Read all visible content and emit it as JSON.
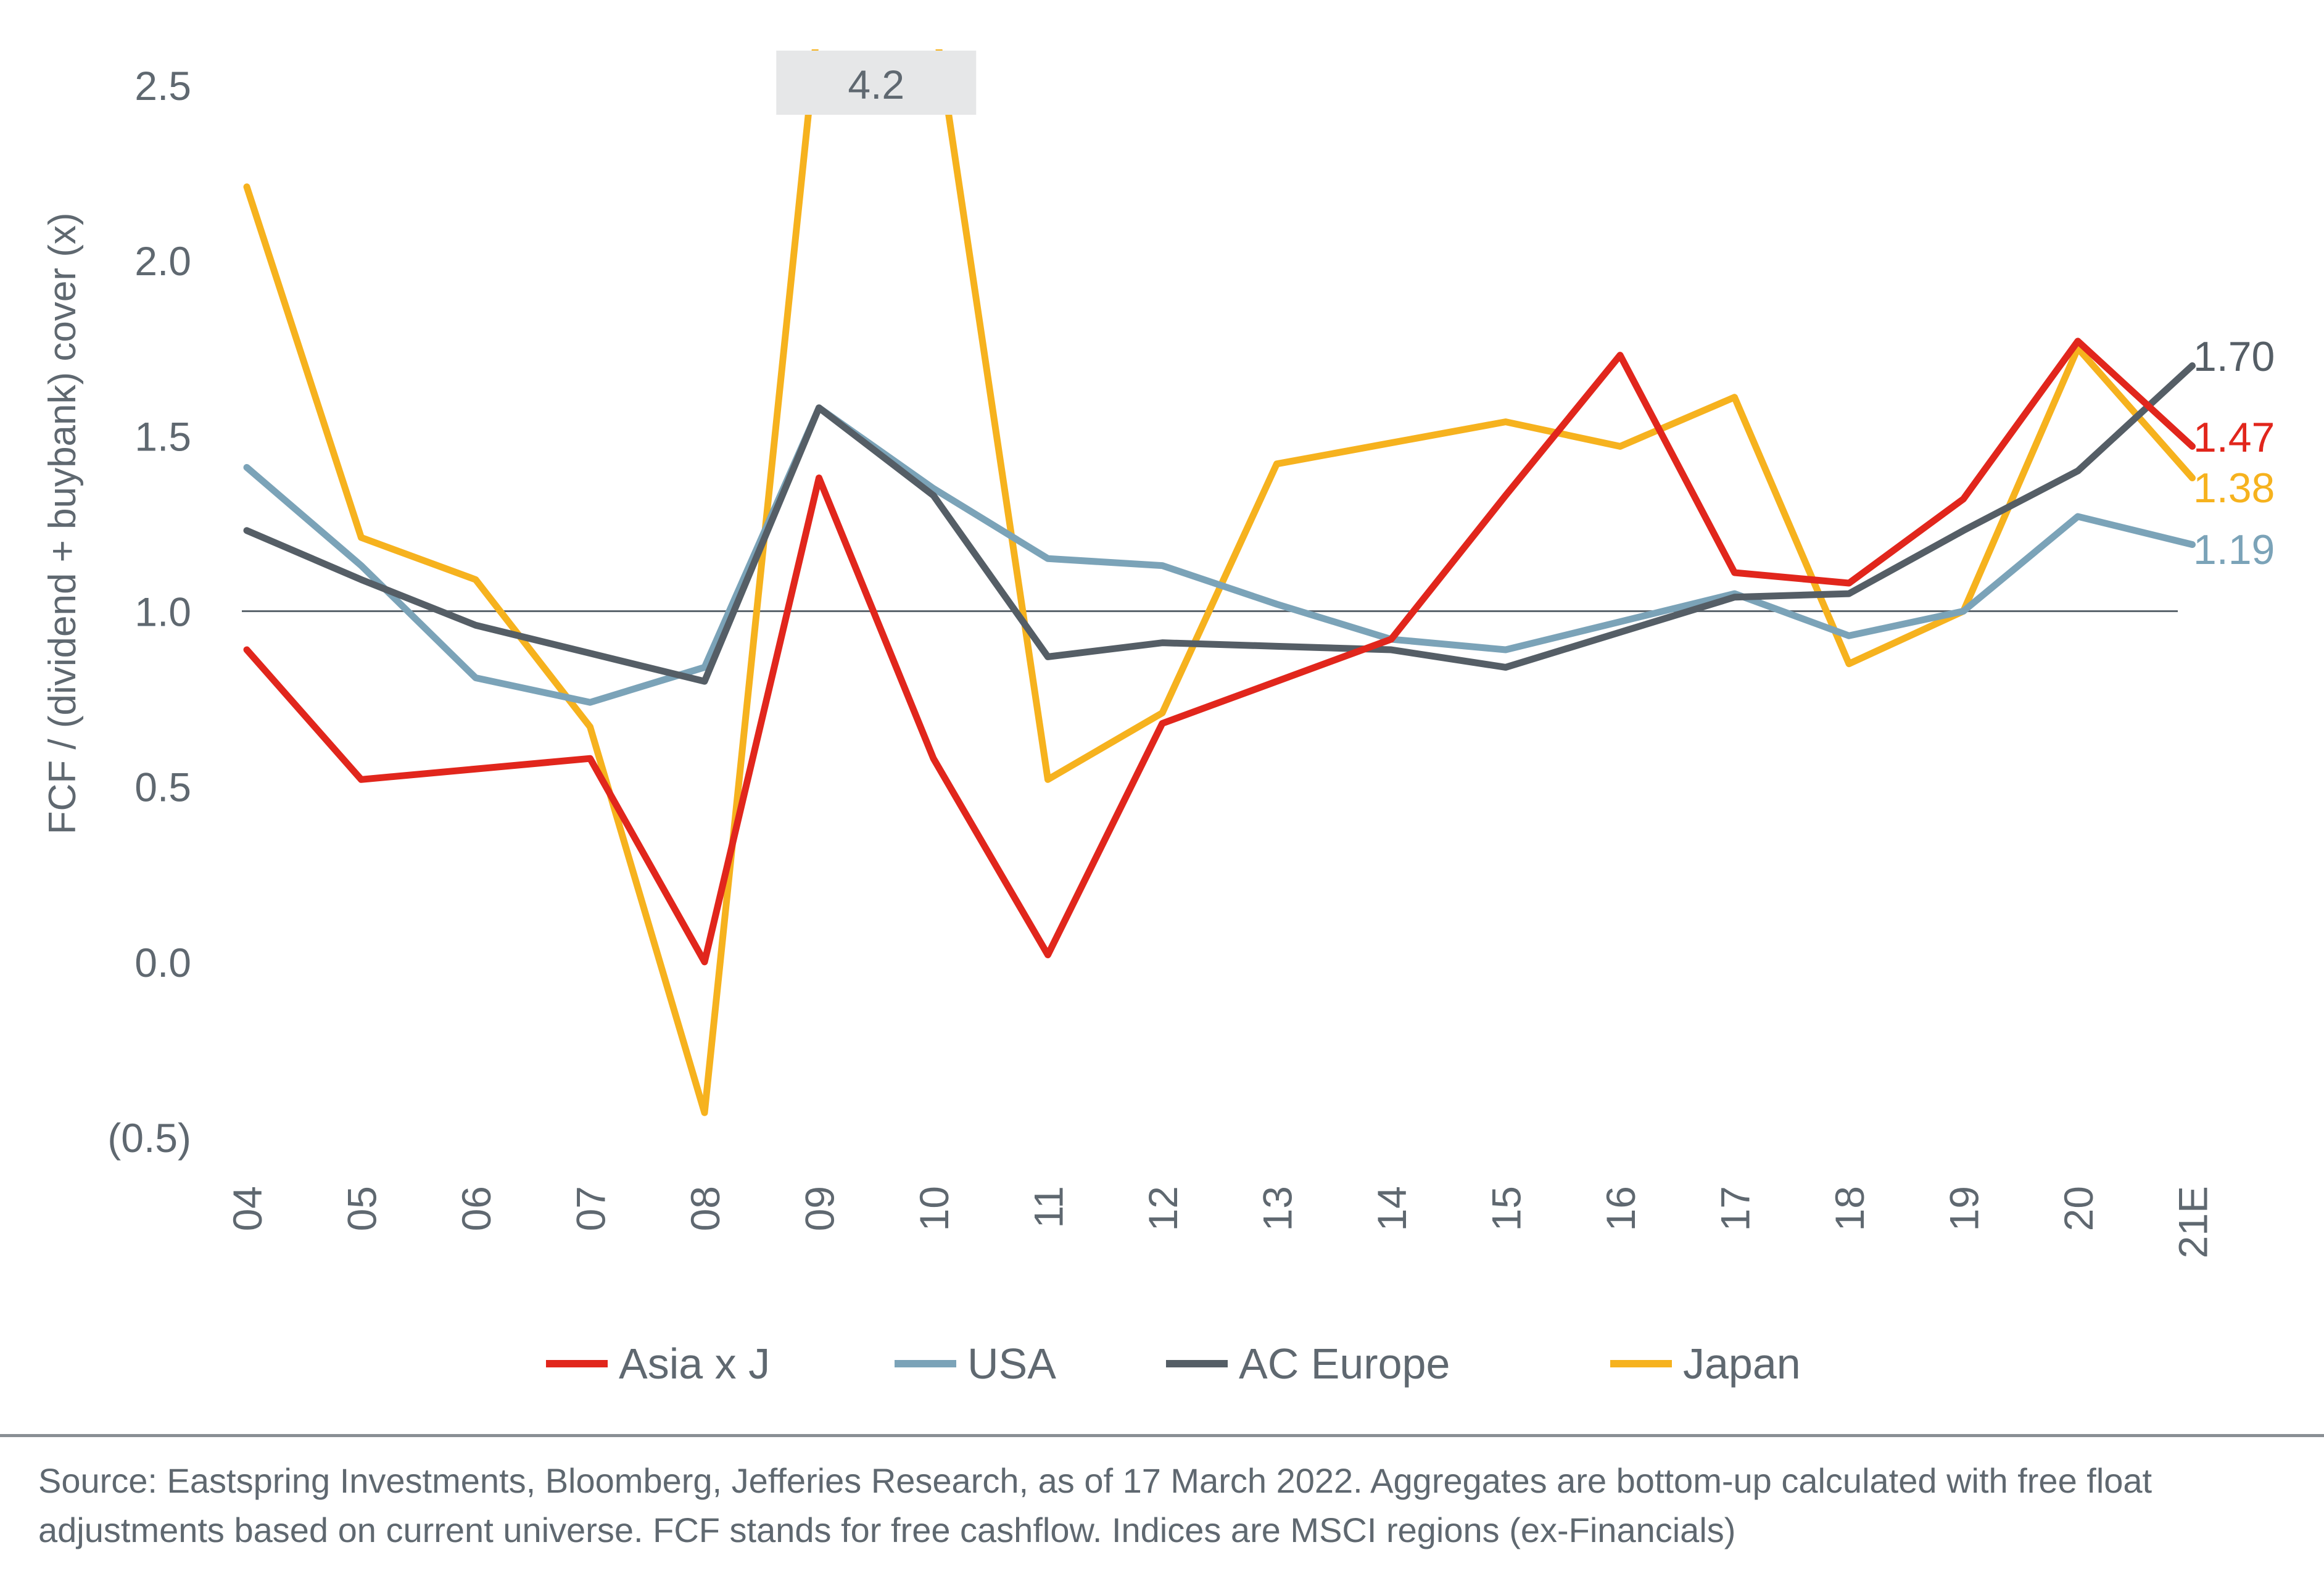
{
  "chart_data": {
    "type": "line",
    "title": "",
    "xlabel": "",
    "ylabel": "FCF / (dividend + buybank) cover (x)",
    "ylim": [
      -0.5,
      2.5
    ],
    "y_ticks": [
      "2.5",
      "2.0",
      "1.5",
      "1.0",
      "0.5",
      "0.0",
      "(0.5)"
    ],
    "y_tick_values": [
      2.5,
      2.0,
      1.5,
      1.0,
      0.5,
      0.0,
      -0.5
    ],
    "reference_line": 1.0,
    "categories": [
      "04",
      "05",
      "06",
      "07",
      "08",
      "09",
      "10",
      "11",
      "12",
      "13",
      "14",
      "15",
      "16",
      "17",
      "18",
      "19",
      "20",
      "21E"
    ],
    "series": [
      {
        "name": "Asia x J",
        "color": "#E1261C",
        "values": [
          0.89,
          0.52,
          0.55,
          0.58,
          0.0,
          1.38,
          0.58,
          0.02,
          0.68,
          0.8,
          0.92,
          1.33,
          1.73,
          1.11,
          1.08,
          1.32,
          1.77,
          1.47
        ]
      },
      {
        "name": "USA",
        "color": "#7BA3B8",
        "values": [
          1.41,
          1.13,
          0.81,
          0.74,
          0.84,
          1.58,
          1.35,
          1.15,
          1.13,
          1.02,
          0.92,
          0.89,
          0.97,
          1.05,
          0.93,
          1.0,
          1.27,
          1.19
        ]
      },
      {
        "name": "AC Europe",
        "color": "#555E66",
        "values": [
          1.23,
          1.09,
          0.96,
          0.88,
          0.8,
          1.58,
          1.33,
          0.87,
          0.91,
          0.9,
          0.89,
          0.84,
          0.94,
          1.04,
          1.05,
          1.23,
          1.4,
          1.7
        ]
      },
      {
        "name": "Japan",
        "color": "#F6B21E",
        "values": [
          2.21,
          1.21,
          1.09,
          0.67,
          -0.43,
          4.2,
          4.2,
          0.52,
          0.71,
          1.42,
          1.48,
          1.54,
          1.47,
          1.61,
          0.85,
          1.0,
          1.75,
          1.38
        ]
      }
    ],
    "callout": {
      "label": "4.2",
      "series": "Japan",
      "note": "off scale at 09-10"
    },
    "end_labels": [
      {
        "series": "AC Europe",
        "label": "1.70",
        "color": "#555E66"
      },
      {
        "series": "Asia x J",
        "label": "1.47",
        "color": "#E1261C"
      },
      {
        "series": "Japan",
        "label": "1.38",
        "color": "#F6B21E"
      },
      {
        "series": "USA",
        "label": "1.19",
        "color": "#7BA3B8"
      }
    ],
    "legend": {
      "position": "bottom",
      "items": [
        "Asia x J",
        "USA",
        "AC Europe",
        "Japan"
      ]
    }
  },
  "source": {
    "line1": "Source: Eastspring Investments, Bloomberg, Jefferies Research, as of 17 March 2022. Aggregates are bottom-up calculated with free float",
    "line2": "adjustments based on current universe. FCF stands for free cashflow. Indices are MSCI regions (ex-Financials)"
  }
}
